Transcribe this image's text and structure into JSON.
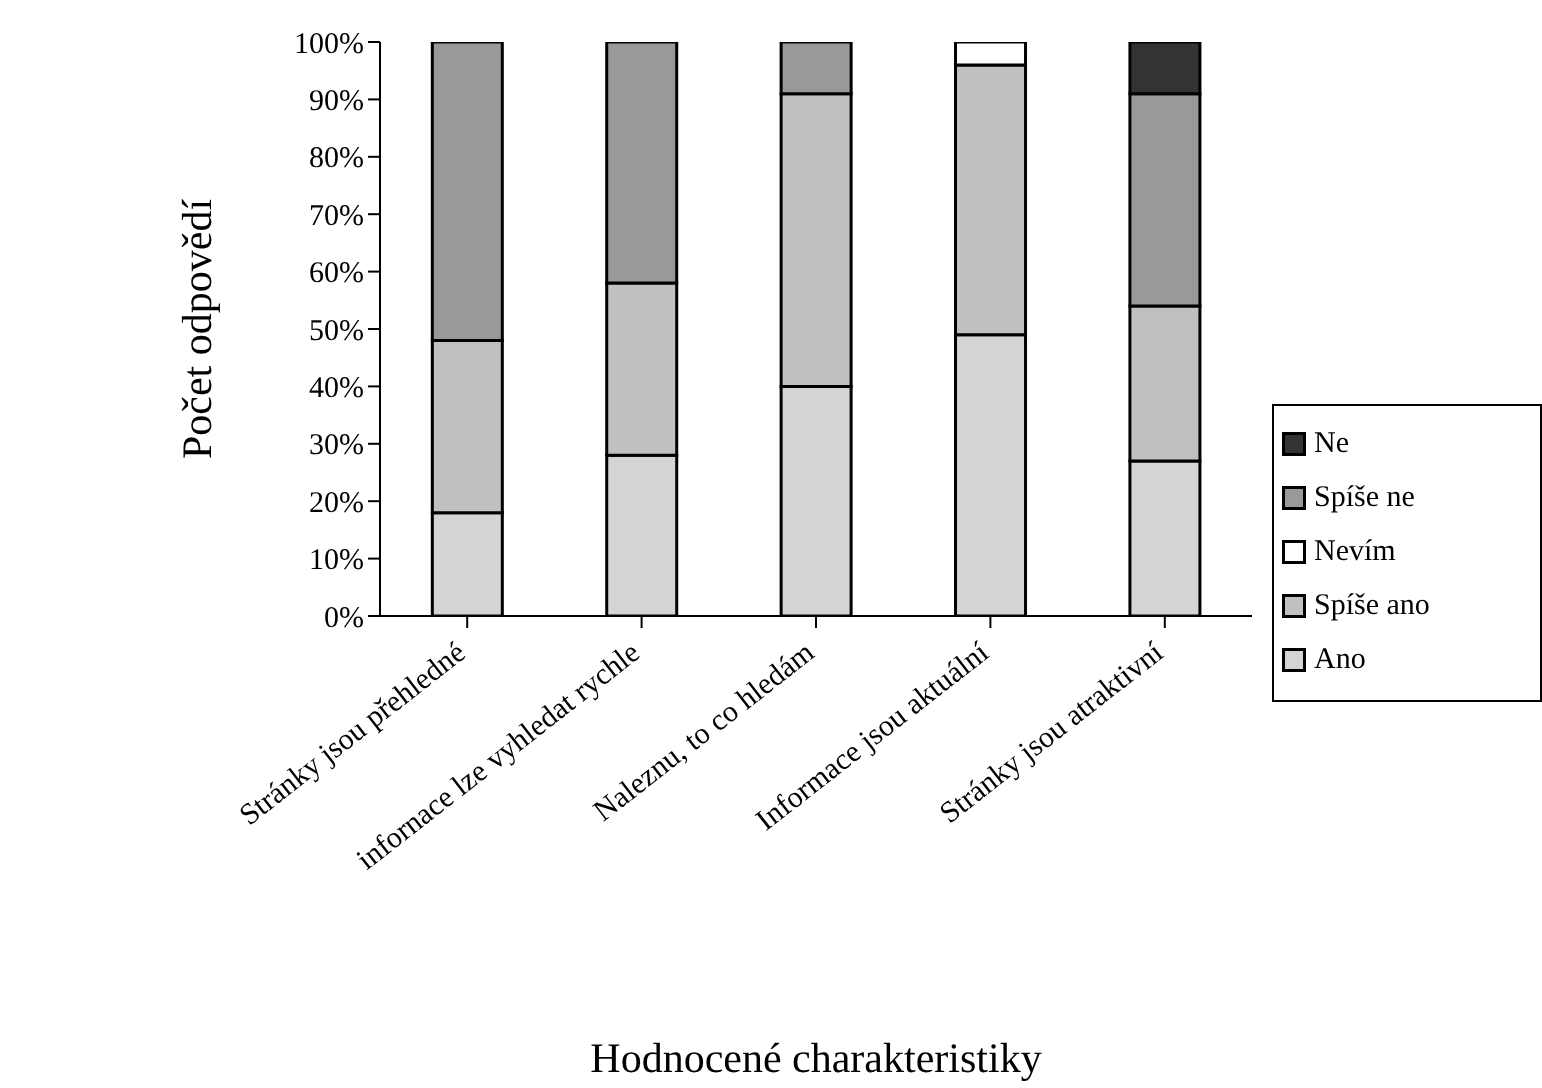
{
  "chart_data": {
    "type": "bar",
    "stacked": true,
    "xlabel": "Hodnocené charakteristiky",
    "ylabel": "Počet odpovědí",
    "categories": [
      "Stránky jsou přehledné",
      "infornace lze vyhledat rychle",
      "Naleznu, to co hledám",
      "Informace jsou aktuální",
      "Stránky jsou atraktivní"
    ],
    "series": [
      {
        "name": "Ano",
        "color": "#d4d4d4",
        "values": [
          18,
          28,
          40,
          49,
          27
        ]
      },
      {
        "name": "Spíše ano",
        "color": "#c0c0c0",
        "values": [
          30,
          30,
          51,
          47,
          27
        ]
      },
      {
        "name": "Nevím",
        "color": "#ffffff",
        "values": [
          0,
          0,
          0,
          4,
          0
        ]
      },
      {
        "name": "Spíše ne",
        "color": "#999999",
        "values": [
          52,
          42,
          9,
          0,
          37
        ]
      },
      {
        "name": "Ne",
        "color": "#333333",
        "values": [
          0,
          0,
          0,
          0,
          9
        ]
      }
    ],
    "ylim": [
      0,
      100
    ],
    "yticks": [
      {
        "value": 0,
        "label": "0%"
      },
      {
        "value": 10,
        "label": "10%"
      },
      {
        "value": 20,
        "label": "20%"
      },
      {
        "value": 30,
        "label": "30%"
      },
      {
        "value": 40,
        "label": "40%"
      },
      {
        "value": 50,
        "label": "50%"
      },
      {
        "value": 60,
        "label": "60%"
      },
      {
        "value": 70,
        "label": "70%"
      },
      {
        "value": 80,
        "label": "80%"
      },
      {
        "value": 90,
        "label": "90%"
      },
      {
        "value": 100,
        "label": "100%"
      }
    ],
    "grid": false,
    "legend": "right"
  }
}
